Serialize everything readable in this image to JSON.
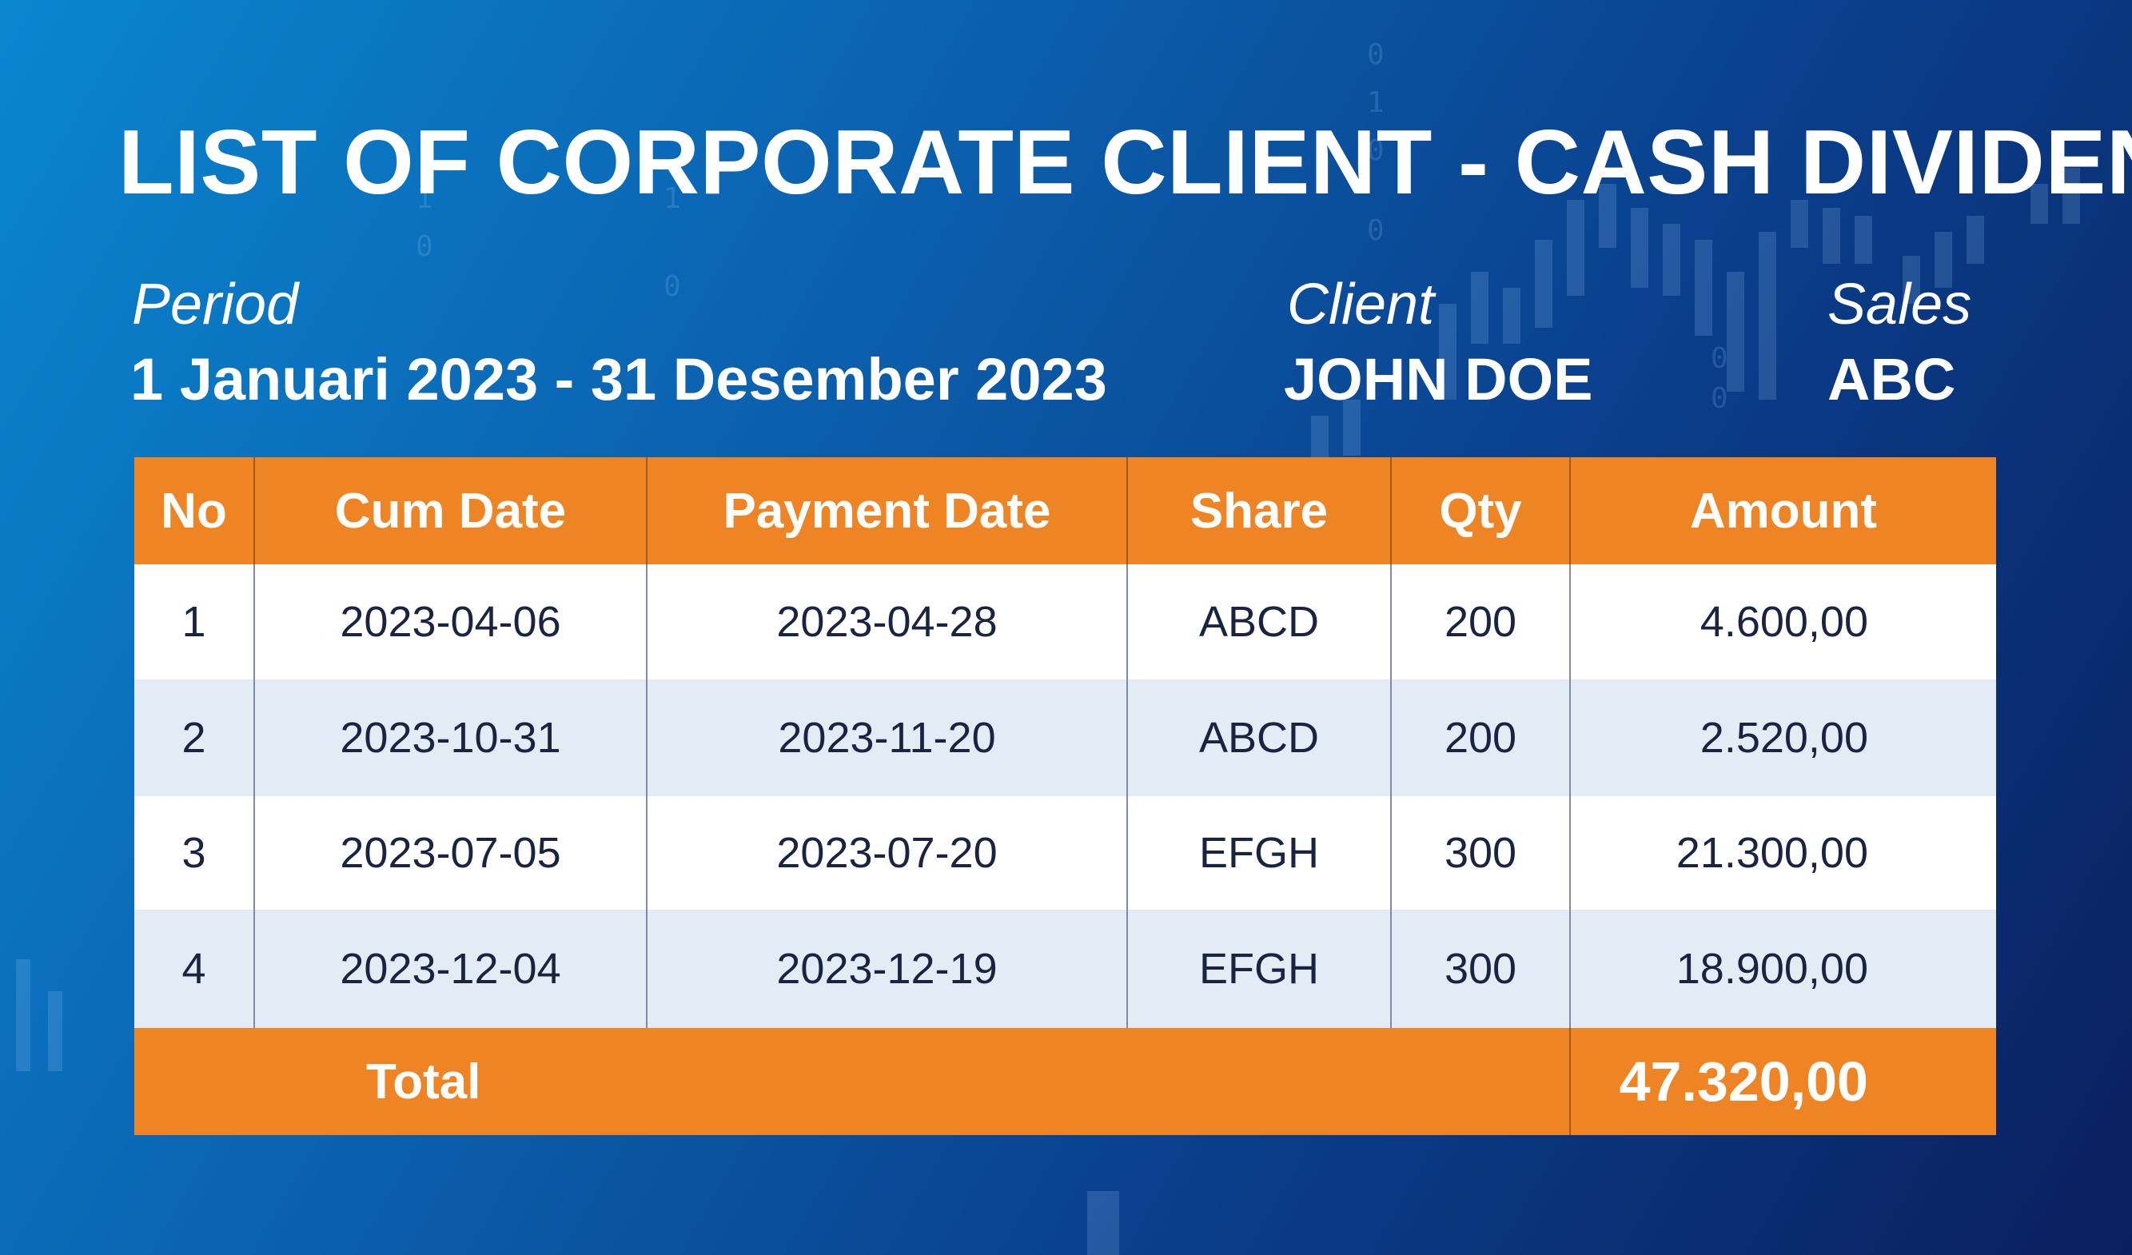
{
  "title": "LIST OF CORPORATE CLIENT - CASH DIVIDEN",
  "meta": {
    "period_label": "Period",
    "period_value": "1 Januari 2023 - 31 Desember 2023",
    "client_label": "Client",
    "client_value": "JOHN DOE",
    "sales_label": "Sales",
    "sales_value": "ABC"
  },
  "table": {
    "headers": [
      "No",
      "Cum Date",
      "Payment Date",
      "Share",
      "Qty",
      "Amount"
    ],
    "rows": [
      {
        "no": "1",
        "cum_date": "2023-04-06",
        "payment_date": "2023-04-28",
        "share": "ABCD",
        "qty": "200",
        "amount": "4.600,00"
      },
      {
        "no": "2",
        "cum_date": "2023-10-31",
        "payment_date": "2023-11-20",
        "share": "ABCD",
        "qty": "200",
        "amount": "2.520,00"
      },
      {
        "no": "3",
        "cum_date": "2023-07-05",
        "payment_date": "2023-07-20",
        "share": "EFGH",
        "qty": "300",
        "amount": "21.300,00"
      },
      {
        "no": "4",
        "cum_date": "2023-12-04",
        "payment_date": "2023-12-19",
        "share": "EFGH",
        "qty": "300",
        "amount": "18.900,00"
      }
    ],
    "total_label": "Total",
    "total_amount": "47.320,00"
  },
  "colors": {
    "header_orange": "#ee8424",
    "row_alt_blue": "#e3ebf4",
    "background_blue": "#0b66b4",
    "text_dark": "#1a2340"
  }
}
